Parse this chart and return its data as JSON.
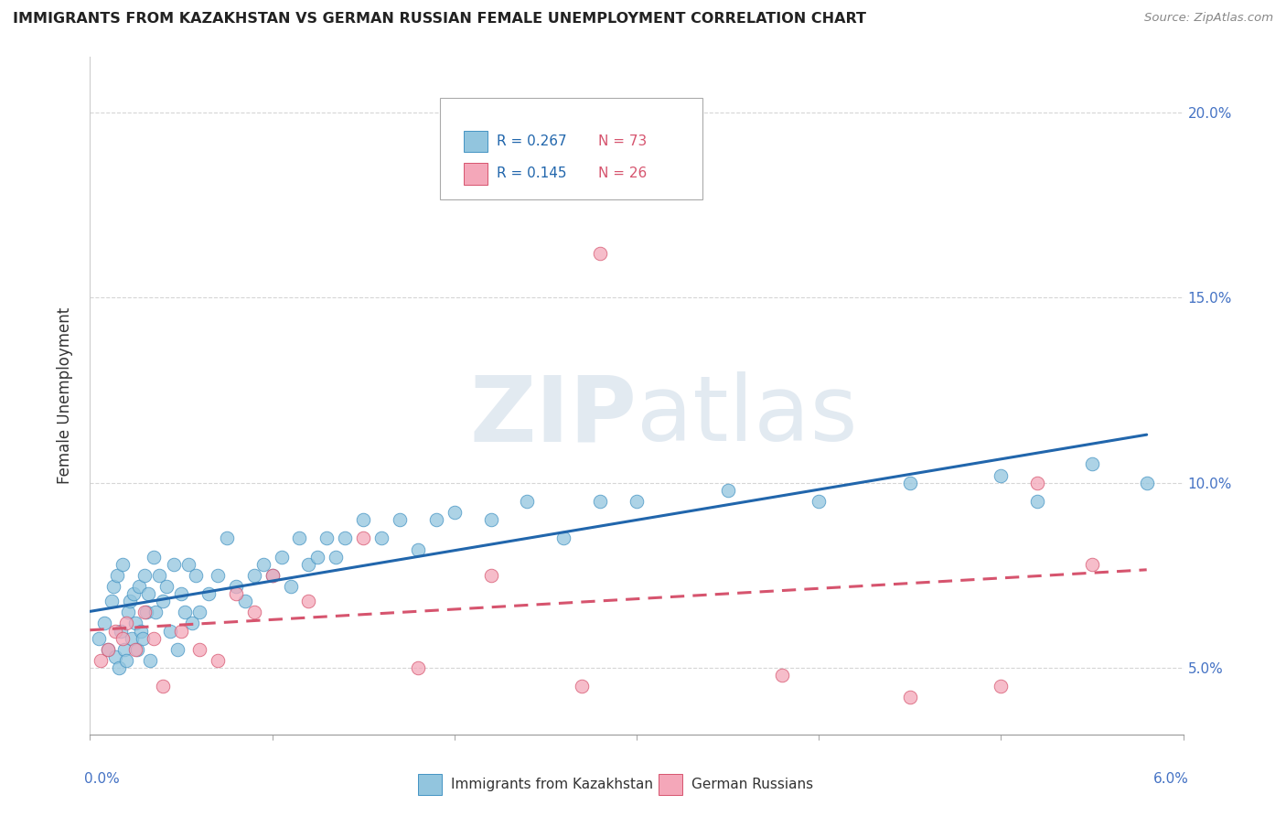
{
  "title": "IMMIGRANTS FROM KAZAKHSTAN VS GERMAN RUSSIAN FEMALE UNEMPLOYMENT CORRELATION CHART",
  "source": "Source: ZipAtlas.com",
  "ylabel": "Female Unemployment",
  "xlim": [
    0.0,
    6.0
  ],
  "ylim": [
    3.2,
    21.5
  ],
  "yticks": [
    5.0,
    10.0,
    15.0,
    20.0
  ],
  "ytick_labels": [
    "5.0%",
    "10.0%",
    "15.0%",
    "20.0%"
  ],
  "series1_label": "Immigrants from Kazakhstan",
  "series1_R": "0.267",
  "series1_N": "73",
  "series1_color": "#92c5de",
  "series1_edge_color": "#4393c3",
  "series1_trend_color": "#2166ac",
  "series2_label": "German Russians",
  "series2_R": "0.145",
  "series2_N": "26",
  "series2_color": "#f4a7b9",
  "series2_edge_color": "#d6546e",
  "series2_trend_color": "#d6546e",
  "legend_R_color": "#2166ac",
  "legend_N_color": "#d6546e",
  "watermark_color": "#d0dce8",
  "background_color": "#ffffff",
  "grid_color": "#cccccc",
  "scatter1_x": [
    0.05,
    0.08,
    0.1,
    0.12,
    0.13,
    0.14,
    0.15,
    0.16,
    0.17,
    0.18,
    0.19,
    0.2,
    0.21,
    0.22,
    0.23,
    0.24,
    0.25,
    0.26,
    0.27,
    0.28,
    0.29,
    0.3,
    0.31,
    0.32,
    0.33,
    0.35,
    0.36,
    0.38,
    0.4,
    0.42,
    0.44,
    0.46,
    0.48,
    0.5,
    0.52,
    0.54,
    0.56,
    0.58,
    0.6,
    0.65,
    0.7,
    0.75,
    0.8,
    0.85,
    0.9,
    0.95,
    1.0,
    1.05,
    1.1,
    1.15,
    1.2,
    1.25,
    1.3,
    1.35,
    1.4,
    1.5,
    1.6,
    1.7,
    1.8,
    1.9,
    2.0,
    2.2,
    2.4,
    2.6,
    2.8,
    3.0,
    3.5,
    4.0,
    4.5,
    5.0,
    5.2,
    5.5,
    5.8
  ],
  "scatter1_y": [
    5.8,
    6.2,
    5.5,
    6.8,
    7.2,
    5.3,
    7.5,
    5.0,
    6.0,
    7.8,
    5.5,
    5.2,
    6.5,
    6.8,
    5.8,
    7.0,
    6.2,
    5.5,
    7.2,
    6.0,
    5.8,
    7.5,
    6.5,
    7.0,
    5.2,
    8.0,
    6.5,
    7.5,
    6.8,
    7.2,
    6.0,
    7.8,
    5.5,
    7.0,
    6.5,
    7.8,
    6.2,
    7.5,
    6.5,
    7.0,
    7.5,
    8.5,
    7.2,
    6.8,
    7.5,
    7.8,
    7.5,
    8.0,
    7.2,
    8.5,
    7.8,
    8.0,
    8.5,
    8.0,
    8.5,
    9.0,
    8.5,
    9.0,
    8.2,
    9.0,
    9.2,
    9.0,
    9.5,
    8.5,
    9.5,
    9.5,
    9.8,
    9.5,
    10.0,
    10.2,
    9.5,
    10.5,
    10.0
  ],
  "scatter2_x": [
    0.06,
    0.1,
    0.14,
    0.18,
    0.2,
    0.25,
    0.3,
    0.35,
    0.4,
    0.5,
    0.6,
    0.7,
    0.8,
    0.9,
    1.0,
    1.2,
    1.5,
    1.8,
    2.2,
    2.7,
    2.8,
    3.8,
    4.5,
    5.0,
    5.2,
    5.5
  ],
  "scatter2_y": [
    5.2,
    5.5,
    6.0,
    5.8,
    6.2,
    5.5,
    6.5,
    5.8,
    4.5,
    6.0,
    5.5,
    5.2,
    7.0,
    6.5,
    7.5,
    6.8,
    8.5,
    5.0,
    7.5,
    4.5,
    16.2,
    4.8,
    4.2,
    4.5,
    10.0,
    7.8
  ]
}
